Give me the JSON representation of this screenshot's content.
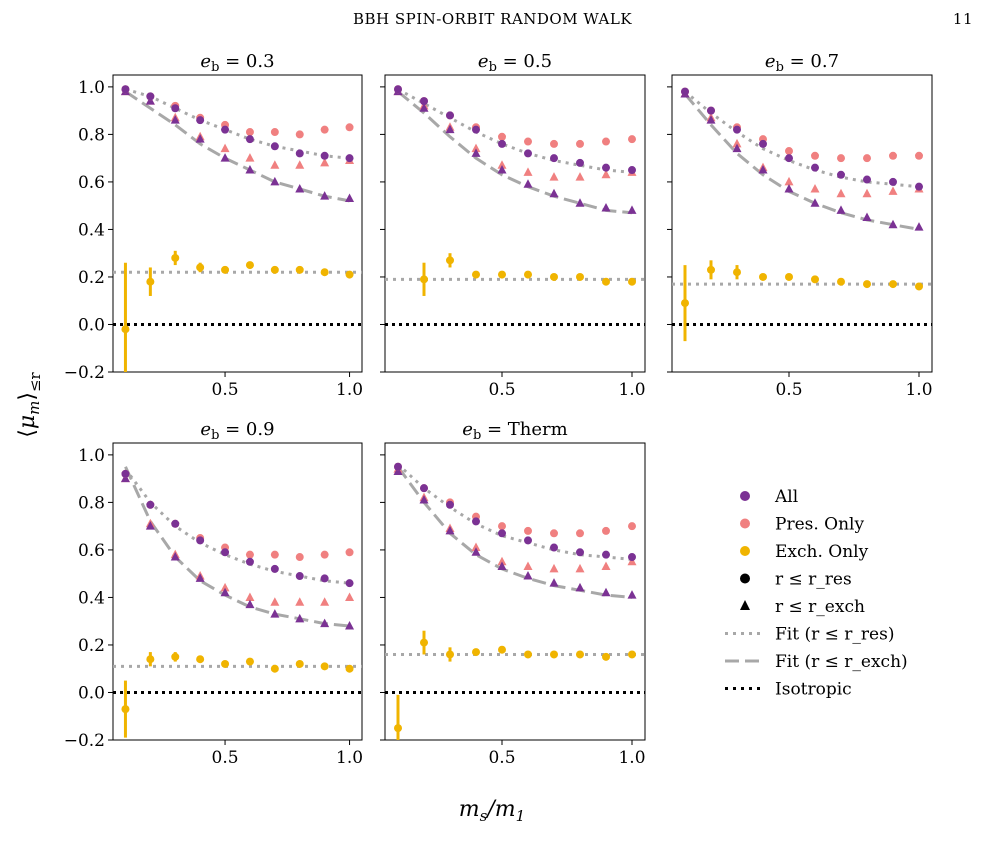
{
  "header": {
    "running_title": "BBH SPIN-ORBIT RANDOM WALK",
    "page_number": "11"
  },
  "colors": {
    "all": "#7b3294",
    "pres": "#f08080",
    "exch": "#f0b400",
    "fit": "#a8a8a8",
    "iso": "#000000"
  },
  "chart_data": {
    "type": "scatter",
    "xlabel": "m_s/m_1",
    "ylabel": "⟨μ_m⟩_≤r",
    "xlim": [
      0.05,
      1.05
    ],
    "ylim": [
      -0.2,
      1.05
    ],
    "xticks": [
      0.5,
      1.0
    ],
    "xticklabels": [
      "0.5",
      "1.0"
    ],
    "yticks": [
      -0.2,
      0.0,
      0.2,
      0.4,
      0.6,
      0.8,
      1.0
    ],
    "yticklabels": [
      "−0.2",
      "0.0",
      "0.2",
      "0.4",
      "0.6",
      "0.8",
      "1.0"
    ],
    "legend": {
      "placement": "lower-right empty panel",
      "entries": [
        {
          "label": "All",
          "marker": "circle",
          "color": "all"
        },
        {
          "label": "Pres. Only",
          "marker": "circle",
          "color": "pres"
        },
        {
          "label": "Exch. Only",
          "marker": "circle",
          "color": "exch"
        },
        {
          "label": "r ≤ r_res",
          "marker": "circle",
          "color": "iso"
        },
        {
          "label": "r ≤ r_exch",
          "marker": "triangle",
          "color": "iso"
        },
        {
          "label": "Fit (r ≤ r_res)",
          "marker": "dotted",
          "color": "fit"
        },
        {
          "label": "Fit (r ≤ r_exch)",
          "marker": "dashed",
          "color": "fit"
        },
        {
          "label": "Isotropic",
          "marker": "dotted",
          "color": "iso"
        }
      ]
    },
    "panels": [
      {
        "title": "e_b = 0.3",
        "x": [
          0.1,
          0.2,
          0.3,
          0.4,
          0.5,
          0.6,
          0.7,
          0.8,
          0.9,
          1.0
        ],
        "all_res": [
          0.99,
          0.96,
          0.91,
          0.86,
          0.82,
          0.78,
          0.75,
          0.72,
          0.71,
          0.7
        ],
        "pres_res": [
          0.99,
          0.96,
          0.92,
          0.87,
          0.84,
          0.81,
          0.81,
          0.8,
          0.82,
          0.83
        ],
        "all_exch": [
          0.98,
          0.94,
          0.86,
          0.78,
          0.7,
          0.65,
          0.6,
          0.57,
          0.54,
          0.53
        ],
        "pres_exch": [
          0.98,
          0.94,
          0.87,
          0.79,
          0.74,
          0.7,
          0.67,
          0.67,
          0.68,
          0.69
        ],
        "exch_only": [
          -0.02,
          0.18,
          0.28,
          0.24,
          0.23,
          0.25,
          0.23,
          0.23,
          0.22,
          0.21
        ],
        "exch_err": [
          0.28,
          0.06,
          0.03,
          0.02,
          0.0,
          0.0,
          0.0,
          0.0,
          0.0,
          0.0
        ],
        "fit_exch_const": 0.22,
        "fit_res": [
          0.99,
          0.96,
          0.91,
          0.86,
          0.82,
          0.78,
          0.75,
          0.73,
          0.71,
          0.7
        ],
        "fit_exch": [
          0.98,
          0.91,
          0.84,
          0.76,
          0.7,
          0.65,
          0.6,
          0.57,
          0.54,
          0.52
        ]
      },
      {
        "title": "e_b = 0.5",
        "x": [
          0.1,
          0.2,
          0.3,
          0.4,
          0.5,
          0.6,
          0.7,
          0.8,
          0.9,
          1.0
        ],
        "all_res": [
          0.99,
          0.94,
          0.88,
          0.82,
          0.76,
          0.72,
          0.7,
          0.68,
          0.66,
          0.65
        ],
        "pres_res": [
          0.99,
          0.94,
          0.88,
          0.83,
          0.79,
          0.77,
          0.76,
          0.76,
          0.77,
          0.78
        ],
        "all_exch": [
          0.98,
          0.91,
          0.82,
          0.72,
          0.65,
          0.59,
          0.55,
          0.51,
          0.49,
          0.48
        ],
        "pres_exch": [
          0.98,
          0.92,
          0.83,
          0.74,
          0.67,
          0.64,
          0.62,
          0.62,
          0.63,
          0.64
        ],
        "exch_only": [
          null,
          0.19,
          0.27,
          0.21,
          0.21,
          0.21,
          0.2,
          0.2,
          0.18,
          0.18
        ],
        "exch_err": [
          0.0,
          0.07,
          0.03,
          0.0,
          0.0,
          0.0,
          0.0,
          0.0,
          0.0,
          0.0
        ],
        "fit_exch_const": 0.19,
        "fit_res": [
          0.99,
          0.93,
          0.87,
          0.81,
          0.76,
          0.72,
          0.69,
          0.67,
          0.65,
          0.64
        ],
        "fit_exch": [
          0.98,
          0.89,
          0.79,
          0.7,
          0.63,
          0.58,
          0.54,
          0.51,
          0.48,
          0.47
        ]
      },
      {
        "title": "e_b = 0.7",
        "x": [
          0.1,
          0.2,
          0.3,
          0.4,
          0.5,
          0.6,
          0.7,
          0.8,
          0.9,
          1.0
        ],
        "all_res": [
          0.98,
          0.9,
          0.82,
          0.76,
          0.7,
          0.66,
          0.63,
          0.61,
          0.6,
          0.58
        ],
        "pres_res": [
          0.98,
          0.9,
          0.83,
          0.78,
          0.73,
          0.71,
          0.7,
          0.7,
          0.71,
          0.71
        ],
        "all_exch": [
          0.97,
          0.86,
          0.74,
          0.65,
          0.57,
          0.51,
          0.48,
          0.45,
          0.42,
          0.41
        ],
        "pres_exch": [
          0.97,
          0.87,
          0.76,
          0.66,
          0.6,
          0.57,
          0.55,
          0.55,
          0.56,
          0.57
        ],
        "exch_only": [
          0.09,
          0.23,
          0.22,
          0.2,
          0.2,
          0.19,
          0.18,
          0.17,
          0.17,
          0.16
        ],
        "exch_err": [
          0.16,
          0.04,
          0.03,
          0.0,
          0.0,
          0.0,
          0.0,
          0.0,
          0.0,
          0.0
        ],
        "fit_exch_const": 0.17,
        "fit_res": [
          0.98,
          0.89,
          0.81,
          0.74,
          0.69,
          0.65,
          0.62,
          0.6,
          0.59,
          0.58
        ],
        "fit_exch": [
          0.97,
          0.84,
          0.72,
          0.63,
          0.56,
          0.51,
          0.47,
          0.44,
          0.42,
          0.4
        ]
      },
      {
        "title": "e_b = 0.9",
        "x": [
          0.1,
          0.2,
          0.3,
          0.4,
          0.5,
          0.6,
          0.7,
          0.8,
          0.9,
          1.0
        ],
        "all_res": [
          0.92,
          0.79,
          0.71,
          0.64,
          0.59,
          0.55,
          0.52,
          0.49,
          0.48,
          0.46
        ],
        "pres_res": [
          0.92,
          0.79,
          0.71,
          0.65,
          0.61,
          0.58,
          0.58,
          0.57,
          0.58,
          0.59
        ],
        "all_exch": [
          0.9,
          0.7,
          0.57,
          0.48,
          0.42,
          0.37,
          0.33,
          0.31,
          0.29,
          0.28
        ],
        "pres_exch": [
          0.9,
          0.71,
          0.58,
          0.49,
          0.44,
          0.4,
          0.38,
          0.38,
          0.38,
          0.4
        ],
        "exch_only": [
          -0.07,
          0.14,
          0.15,
          0.14,
          0.12,
          0.13,
          0.1,
          0.12,
          0.11,
          0.1
        ],
        "exch_err": [
          0.12,
          0.03,
          0.02,
          0.0,
          0.0,
          0.0,
          0.0,
          0.0,
          0.0,
          0.0
        ],
        "fit_exch_const": 0.11,
        "fit_res": [
          0.94,
          0.8,
          0.7,
          0.63,
          0.58,
          0.54,
          0.51,
          0.49,
          0.47,
          0.46
        ],
        "fit_exch": [
          0.95,
          0.72,
          0.57,
          0.47,
          0.41,
          0.36,
          0.33,
          0.31,
          0.29,
          0.28
        ]
      },
      {
        "title": "e_b = Therm",
        "x": [
          0.1,
          0.2,
          0.3,
          0.4,
          0.5,
          0.6,
          0.7,
          0.8,
          0.9,
          1.0
        ],
        "all_res": [
          0.95,
          0.86,
          0.79,
          0.72,
          0.67,
          0.64,
          0.61,
          0.59,
          0.58,
          0.57
        ],
        "pres_res": [
          0.95,
          0.86,
          0.8,
          0.74,
          0.7,
          0.68,
          0.67,
          0.67,
          0.68,
          0.7
        ],
        "all_exch": [
          0.93,
          0.81,
          0.68,
          0.59,
          0.53,
          0.49,
          0.46,
          0.44,
          0.42,
          0.41
        ],
        "pres_exch": [
          0.94,
          0.82,
          0.69,
          0.61,
          0.55,
          0.53,
          0.52,
          0.52,
          0.53,
          0.55
        ],
        "exch_only": [
          -0.15,
          0.21,
          0.16,
          0.17,
          0.18,
          0.16,
          0.16,
          0.16,
          0.15,
          0.16
        ],
        "exch_err": [
          0.14,
          0.05,
          0.03,
          0.0,
          0.0,
          0.0,
          0.0,
          0.0,
          0.0,
          0.0
        ],
        "fit_exch_const": 0.16,
        "fit_res": [
          0.96,
          0.86,
          0.78,
          0.71,
          0.66,
          0.63,
          0.6,
          0.58,
          0.57,
          0.56
        ],
        "fit_exch": [
          0.95,
          0.8,
          0.67,
          0.58,
          0.52,
          0.48,
          0.45,
          0.43,
          0.41,
          0.4
        ]
      }
    ]
  }
}
